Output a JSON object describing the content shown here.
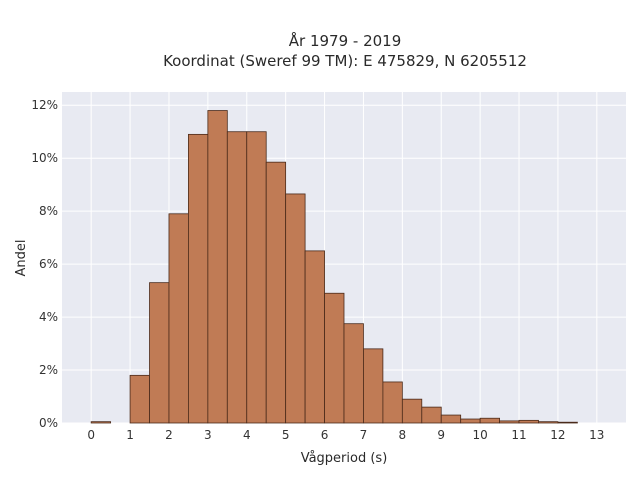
{
  "chart_data": {
    "type": "bar",
    "title": [
      "År 1979 - 2019",
      "Koordinat (Sweref 99 TM): E 475829, N 6205512"
    ],
    "xlabel": "Vågperiod (s)",
    "ylabel": "Andel",
    "xlim": [
      -0.75,
      13.75
    ],
    "ylim": [
      0,
      12.5
    ],
    "x_ticks": [
      0,
      1,
      2,
      3,
      4,
      5,
      6,
      7,
      8,
      9,
      10,
      11,
      12,
      13
    ],
    "y_ticks": [
      0,
      2,
      4,
      6,
      8,
      10,
      12
    ],
    "y_tick_labels": [
      "0%",
      "2%",
      "4%",
      "6%",
      "8%",
      "10%",
      "12%"
    ],
    "bin_width": 0.5,
    "bins": [
      {
        "x0": 0.0,
        "value": 0.05
      },
      {
        "x0": 1.0,
        "value": 1.8
      },
      {
        "x0": 1.5,
        "value": 5.3
      },
      {
        "x0": 2.0,
        "value": 7.9
      },
      {
        "x0": 2.5,
        "value": 10.9
      },
      {
        "x0": 3.0,
        "value": 11.8
      },
      {
        "x0": 3.5,
        "value": 11.0
      },
      {
        "x0": 4.0,
        "value": 11.0
      },
      {
        "x0": 4.5,
        "value": 9.85
      },
      {
        "x0": 5.0,
        "value": 8.65
      },
      {
        "x0": 5.5,
        "value": 6.5
      },
      {
        "x0": 6.0,
        "value": 4.9
      },
      {
        "x0": 6.5,
        "value": 3.75
      },
      {
        "x0": 7.0,
        "value": 2.8
      },
      {
        "x0": 7.5,
        "value": 1.55
      },
      {
        "x0": 8.0,
        "value": 0.9
      },
      {
        "x0": 8.5,
        "value": 0.6
      },
      {
        "x0": 9.0,
        "value": 0.3
      },
      {
        "x0": 9.5,
        "value": 0.15
      },
      {
        "x0": 10.0,
        "value": 0.18
      },
      {
        "x0": 10.5,
        "value": 0.08
      },
      {
        "x0": 11.0,
        "value": 0.1
      },
      {
        "x0": 11.5,
        "value": 0.05
      },
      {
        "x0": 12.0,
        "value": 0.03
      }
    ],
    "grid": true,
    "colors": {
      "bar_fill": "#c07b55",
      "bar_edge": "#4a2a1a",
      "plot_background": "#e8eaf2",
      "grid": "#ffffff"
    }
  }
}
